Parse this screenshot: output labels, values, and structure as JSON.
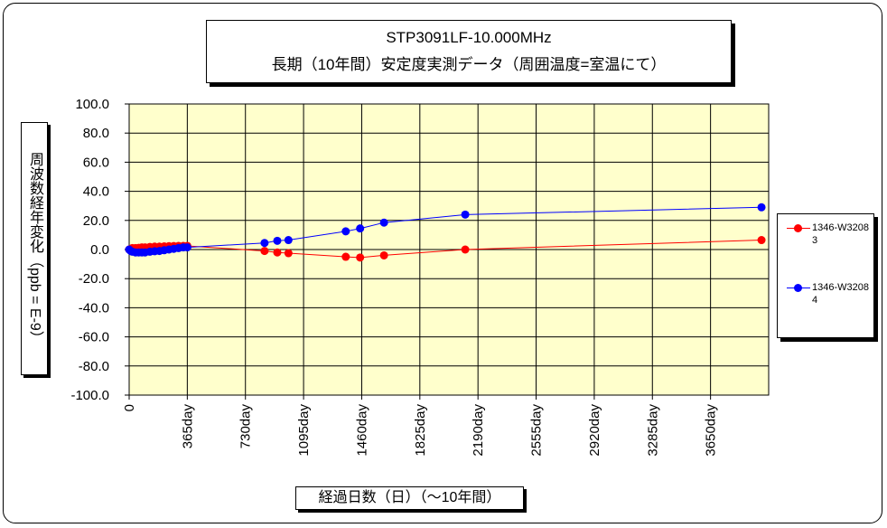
{
  "chart_data": {
    "type": "line",
    "title_line1": "STP3091LF-10.000MHz",
    "title_line2": "長期（10年間）安定度実測データ（周囲温度=室温にて）",
    "ylabel": "周波数経年変化（ppb = E-9）",
    "xlabel": "経過日数（日）（～10年間）",
    "xlim": [
      0,
      4015
    ],
    "ylim": [
      -100,
      100
    ],
    "y_ticks": [
      100,
      80,
      60,
      40,
      20,
      0,
      -20,
      -40,
      -60,
      -80,
      -100
    ],
    "y_tick_labels": [
      "100.0",
      "80.0",
      "60.0",
      "40.0",
      "20.0",
      "0.0",
      "-20.0",
      "-40.0",
      "-60.0",
      "-80.0",
      "-100.0"
    ],
    "x_ticks": [
      0,
      365,
      730,
      1095,
      1460,
      1825,
      2190,
      2555,
      2920,
      3285,
      3650
    ],
    "x_tick_labels": [
      "0",
      "365day",
      "730day",
      "1095day",
      "1460day",
      "1825day",
      "2190day",
      "2555day",
      "2920day",
      "3285day",
      "3650day"
    ],
    "grid": true,
    "legend_position": "right",
    "plot_background": "#ffffcc",
    "series": [
      {
        "name": "1346-W32083",
        "color": "#ff0000",
        "points": [
          [
            0,
            0
          ],
          [
            10,
            0.5
          ],
          [
            20,
            1
          ],
          [
            40,
            1
          ],
          [
            60,
            1.2
          ],
          [
            80,
            1.5
          ],
          [
            100,
            1.5
          ],
          [
            130,
            1.8
          ],
          [
            160,
            2
          ],
          [
            190,
            2
          ],
          [
            220,
            2.2
          ],
          [
            250,
            2.3
          ],
          [
            280,
            2.4
          ],
          [
            310,
            2.5
          ],
          [
            340,
            2.5
          ],
          [
            365,
            2.5
          ],
          [
            850,
            -1
          ],
          [
            930,
            -2
          ],
          [
            1000,
            -2.5
          ],
          [
            1360,
            -5
          ],
          [
            1450,
            -5.5
          ],
          [
            1600,
            -4
          ],
          [
            2110,
            0
          ],
          [
            3970,
            6.5
          ]
        ]
      },
      {
        "name": "1346-W32084",
        "color": "#0000ff",
        "points": [
          [
            0,
            0
          ],
          [
            10,
            -1
          ],
          [
            20,
            -1.5
          ],
          [
            40,
            -2
          ],
          [
            60,
            -2
          ],
          [
            80,
            -2
          ],
          [
            100,
            -2
          ],
          [
            130,
            -1.5
          ],
          [
            160,
            -1.2
          ],
          [
            190,
            -1
          ],
          [
            220,
            -0.5
          ],
          [
            250,
            0
          ],
          [
            280,
            0.5
          ],
          [
            310,
            1
          ],
          [
            340,
            1.5
          ],
          [
            365,
            1.5
          ],
          [
            850,
            4.5
          ],
          [
            930,
            6
          ],
          [
            1000,
            6.5
          ],
          [
            1360,
            12.5
          ],
          [
            1450,
            14.5
          ],
          [
            1600,
            18.5
          ],
          [
            2110,
            24
          ],
          [
            3970,
            29
          ]
        ]
      }
    ]
  }
}
